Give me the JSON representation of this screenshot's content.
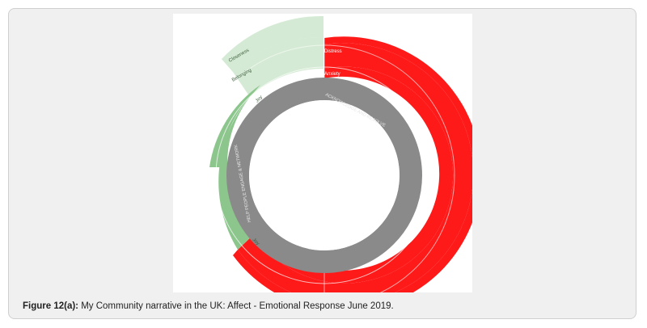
{
  "caption": {
    "label": "Figure 12(a):",
    "text": " My Community narrative in the UK: Affect - Emotional Response June 2019."
  },
  "chart_data": {
    "type": "sunburst",
    "inner_ring": [
      {
        "name": "ACKNOWLEDGE AND RESOLVE",
        "color": "#8a8a8a"
      },
      {
        "name": "HELP PEOPLE ENGAGE & NETWORK",
        "color": "#8a8a8a"
      }
    ],
    "middle_ring": [
      {
        "name": "Anxiety",
        "parent": "ACKNOWLEDGE AND RESOLVE",
        "color": "#ff1a1a"
      },
      {
        "name": "Joy",
        "parent": "HELP PEOPLE ENGAGE & NETWORK",
        "color": "#8cc68c"
      },
      {
        "name": "Belonging",
        "parent": "HELP PEOPLE ENGAGE & NETWORK",
        "color": "#d4ead4"
      }
    ],
    "outer_ring": [
      {
        "name": "Distress",
        "parent": "Anxiety",
        "color": "#ff1a1a"
      },
      {
        "name": "Closeness",
        "parent": "Belonging",
        "color": "#d4ead4"
      }
    ],
    "small_labels": [
      "Joy",
      "Joy"
    ]
  }
}
